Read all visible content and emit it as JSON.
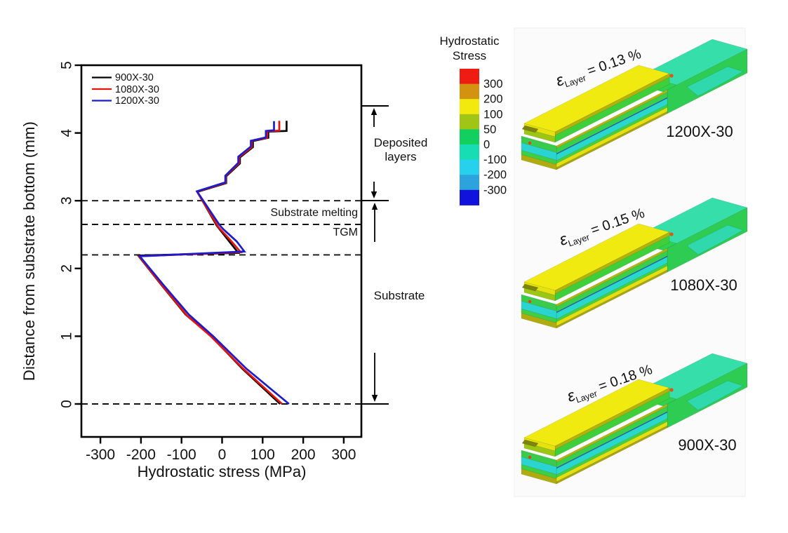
{
  "figure_title": "",
  "chart_data": {
    "type": "line",
    "xlabel": "Hydrostatic stress (MPa)",
    "ylabel": "Distance from substrate bottom (mm)",
    "xlim": [
      -345,
      345
    ],
    "ylim": [
      -0.49,
      5
    ],
    "xticks": [
      -300,
      -200,
      -100,
      0,
      100,
      200,
      300
    ],
    "yticks": [
      0,
      1,
      2,
      3,
      4,
      5
    ],
    "grid": false,
    "legend_position": "top-left",
    "dashed_hlines_mm": [
      0,
      2.2,
      2.65,
      3.0
    ],
    "series": [
      {
        "name": "900X-30",
        "color": "#000000",
        "points": [
          [
            143,
            0
          ],
          [
            50,
            0.52
          ],
          [
            -30,
            1.02
          ],
          [
            -90,
            1.32
          ],
          [
            -150,
            1.76
          ],
          [
            -207,
            2.19
          ],
          [
            40,
            2.23
          ],
          [
            -13,
            2.63
          ],
          [
            -61,
            3.13
          ],
          [
            10,
            3.26
          ],
          [
            10,
            3.36
          ],
          [
            44,
            3.55
          ],
          [
            44,
            3.64
          ],
          [
            76,
            3.79
          ],
          [
            76,
            3.88
          ],
          [
            114,
            3.93
          ],
          [
            114,
            4.02
          ],
          [
            159,
            4.03
          ],
          [
            159,
            4.18
          ]
        ]
      },
      {
        "name": "1080X-30",
        "color": "#e8140c",
        "points": [
          [
            148,
            0
          ],
          [
            52,
            0.52
          ],
          [
            -28,
            1.0
          ],
          [
            -86,
            1.3
          ],
          [
            -148,
            1.75
          ],
          [
            -205,
            2.18
          ],
          [
            46,
            2.24
          ],
          [
            20,
            2.42
          ],
          [
            -9,
            2.61
          ],
          [
            -62,
            3.135
          ],
          [
            9,
            3.265
          ],
          [
            9,
            3.365
          ],
          [
            42,
            3.555
          ],
          [
            42,
            3.645
          ],
          [
            73,
            3.79
          ],
          [
            73,
            3.885
          ],
          [
            111,
            3.93
          ],
          [
            111,
            4.025
          ],
          [
            141,
            4.035
          ],
          [
            141,
            4.18
          ]
        ]
      },
      {
        "name": "1200X-30",
        "color": "#1c1ccc",
        "points": [
          [
            165,
            0
          ],
          [
            60,
            0.52
          ],
          [
            -22,
            1.0
          ],
          [
            -82,
            1.32
          ],
          [
            -145,
            1.76
          ],
          [
            -203,
            2.18
          ],
          [
            55,
            2.25
          ],
          [
            36,
            2.4
          ],
          [
            3,
            2.58
          ],
          [
            -6,
            2.64
          ],
          [
            -62,
            3.14
          ],
          [
            8,
            3.27
          ],
          [
            8,
            3.37
          ],
          [
            40,
            3.56
          ],
          [
            40,
            3.65
          ],
          [
            71,
            3.8
          ],
          [
            71,
            3.885
          ],
          [
            108,
            3.935
          ],
          [
            108,
            4.03
          ],
          [
            128,
            4.04
          ],
          [
            128,
            4.175
          ]
        ]
      }
    ],
    "annotations": {
      "deposited_layers_line1": "Deposited",
      "deposited_layers_line2": "layers",
      "substrate_melting": "Substrate melting",
      "tgm": "TGM",
      "substrate": "Substrate"
    }
  },
  "colorbar": {
    "title_line1": "Hydrostatic",
    "title_line2": "Stress",
    "labels": [
      "300",
      "200",
      "100",
      "50",
      "0",
      "-100",
      "-200",
      "-300"
    ],
    "colors": [
      "#ee1c12",
      "#d3920f",
      "#f2ea0f",
      "#a0c515",
      "#12d060",
      "#16ddb4",
      "#27d0ed",
      "#2da3dd",
      "#1212dd"
    ]
  },
  "renders": [
    {
      "epsilon": "ε",
      "subscript": "Layer",
      "value": " = 0.13 %",
      "name": "1200X-30"
    },
    {
      "epsilon": "ε",
      "subscript": "Layer",
      "value": " = 0.15 %",
      "name": "1080X-30"
    },
    {
      "epsilon": "ε",
      "subscript": "Layer",
      "value": " = 0.18 %",
      "name": "900X-30"
    }
  ]
}
